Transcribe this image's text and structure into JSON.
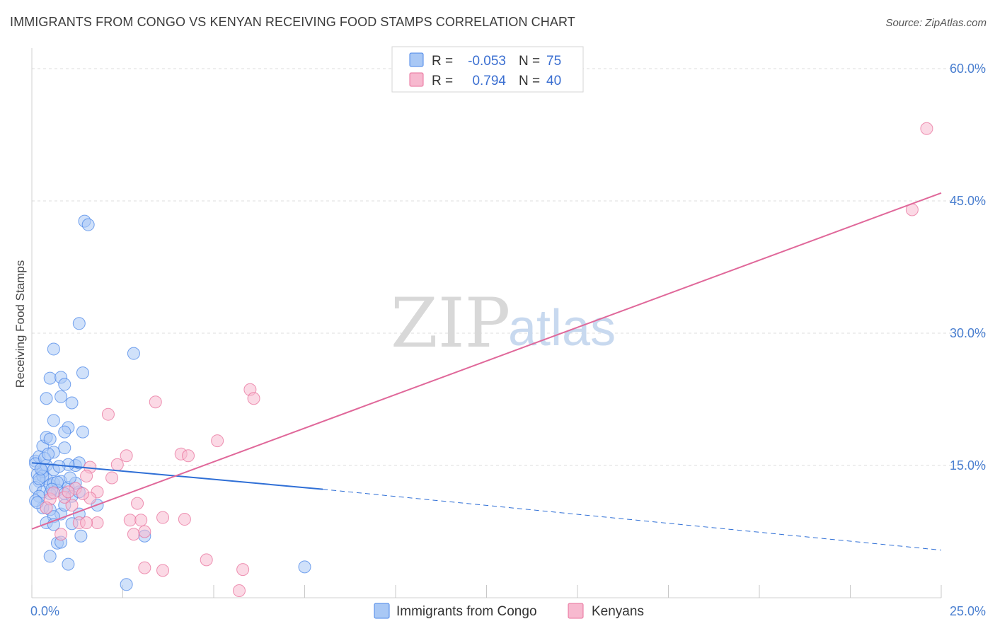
{
  "title": "IMMIGRANTS FROM CONGO VS KENYAN RECEIVING FOOD STAMPS CORRELATION CHART",
  "source": "Source: ZipAtlas.com",
  "colors": {
    "blue": "#4a86e8",
    "blue_fill": "#a9c8f5",
    "blue_line": "#2f6fd6",
    "pink": "#e8709b",
    "pink_fill": "#f7b9cf",
    "pink_line": "#e0689a",
    "grid": "#dedede",
    "tick_text": "#4a7fd0"
  },
  "watermark": {
    "zip": "ZIP",
    "atlas": "atlas"
  },
  "legend": {
    "rows": [
      {
        "r_label": "R =",
        "r_value": "-0.053",
        "n_label": "N =",
        "n_value": "75"
      },
      {
        "r_label": "R =",
        "r_value": "0.794",
        "n_label": "N =",
        "n_value": "40"
      }
    ]
  },
  "bottom_legend": [
    "Immigrants from Congo",
    "Kenyans"
  ],
  "chart_data": {
    "type": "scatter",
    "title": "IMMIGRANTS FROM CONGO VS KENYAN RECEIVING FOOD STAMPS CORRELATION CHART",
    "xlabel": "",
    "ylabel": "Receiving Food Stamps",
    "xlim": [
      0,
      25
    ],
    "ylim": [
      0,
      60
    ],
    "x_tick_labels": [
      "0.0%",
      "25.0%"
    ],
    "y_ticks": [
      15,
      30,
      45,
      60
    ],
    "y_tick_labels": [
      "15.0%",
      "30.0%",
      "45.0%",
      "60.0%"
    ],
    "grid": true,
    "series": [
      {
        "name": "Immigrants from Congo",
        "r": -0.053,
        "n": 75,
        "trend": {
          "x0": 0,
          "y0": 15.3,
          "x1": 8.0,
          "y1": 12.3,
          "dash_to_x": 25,
          "dash_to_y": 5.4
        },
        "points": [
          [
            0.1,
            15.5
          ],
          [
            0.15,
            14.0
          ],
          [
            0.2,
            13.2
          ],
          [
            0.1,
            12.5
          ],
          [
            0.3,
            12.0
          ],
          [
            0.2,
            11.5
          ],
          [
            0.4,
            13.5
          ],
          [
            0.5,
            12.8
          ],
          [
            0.6,
            13.0
          ],
          [
            0.3,
            14.3
          ],
          [
            0.2,
            16.0
          ],
          [
            0.1,
            15.2
          ],
          [
            0.4,
            15.0
          ],
          [
            0.6,
            14.5
          ],
          [
            0.8,
            13.2
          ],
          [
            1.0,
            12.5
          ],
          [
            0.7,
            12.2
          ],
          [
            0.9,
            11.8
          ],
          [
            1.1,
            11.5
          ],
          [
            1.3,
            12.0
          ],
          [
            0.3,
            10.2
          ],
          [
            0.5,
            10.0
          ],
          [
            0.8,
            9.5
          ],
          [
            0.6,
            9.2
          ],
          [
            0.4,
            8.5
          ],
          [
            0.6,
            8.3
          ],
          [
            1.3,
            9.5
          ],
          [
            1.8,
            10.5
          ],
          [
            0.3,
            17.2
          ],
          [
            0.4,
            18.2
          ],
          [
            0.5,
            18.0
          ],
          [
            0.6,
            16.5
          ],
          [
            0.9,
            17.0
          ],
          [
            1.0,
            19.3
          ],
          [
            0.9,
            18.8
          ],
          [
            1.4,
            18.8
          ],
          [
            0.6,
            20.1
          ],
          [
            0.4,
            22.6
          ],
          [
            0.8,
            22.8
          ],
          [
            1.1,
            22.1
          ],
          [
            0.5,
            24.9
          ],
          [
            0.8,
            25.0
          ],
          [
            0.9,
            24.2
          ],
          [
            1.4,
            25.5
          ],
          [
            0.6,
            28.2
          ],
          [
            2.8,
            27.7
          ],
          [
            1.3,
            31.1
          ],
          [
            1.45,
            42.7
          ],
          [
            1.55,
            42.3
          ],
          [
            0.5,
            4.7
          ],
          [
            0.7,
            6.2
          ],
          [
            0.8,
            6.3
          ],
          [
            1.0,
            3.8
          ],
          [
            1.35,
            7.0
          ],
          [
            3.1,
            7.0
          ],
          [
            2.6,
            1.5
          ],
          [
            7.5,
            3.5
          ],
          [
            1.2,
            15.0
          ],
          [
            1.3,
            15.3
          ],
          [
            1.0,
            15.1
          ],
          [
            0.3,
            13.8
          ],
          [
            0.7,
            13.1
          ],
          [
            1.2,
            13.0
          ],
          [
            0.2,
            13.5
          ],
          [
            0.5,
            11.8
          ],
          [
            0.9,
            10.5
          ],
          [
            1.1,
            8.4
          ],
          [
            0.1,
            11.0
          ],
          [
            0.35,
            15.8
          ],
          [
            0.75,
            14.9
          ],
          [
            1.05,
            13.6
          ],
          [
            0.15,
            10.8
          ],
          [
            0.55,
            12.3
          ],
          [
            0.25,
            14.6
          ],
          [
            0.45,
            16.3
          ]
        ]
      },
      {
        "name": "Kenyans",
        "r": 0.794,
        "n": 40,
        "trend": {
          "x0": 0,
          "y0": 7.8,
          "x1": 25,
          "y1": 45.9
        },
        "points": [
          [
            24.6,
            53.2
          ],
          [
            24.2,
            44.0
          ],
          [
            6.0,
            23.6
          ],
          [
            6.1,
            22.6
          ],
          [
            3.4,
            22.2
          ],
          [
            2.1,
            20.8
          ],
          [
            5.1,
            17.8
          ],
          [
            4.1,
            16.3
          ],
          [
            4.3,
            16.1
          ],
          [
            2.6,
            16.1
          ],
          [
            2.35,
            15.1
          ],
          [
            1.6,
            14.8
          ],
          [
            2.2,
            13.6
          ],
          [
            1.8,
            12.0
          ],
          [
            1.6,
            11.3
          ],
          [
            2.9,
            10.7
          ],
          [
            1.1,
            10.5
          ],
          [
            0.9,
            11.4
          ],
          [
            0.5,
            11.2
          ],
          [
            1.5,
            13.8
          ],
          [
            1.3,
            8.5
          ],
          [
            1.8,
            8.5
          ],
          [
            1.5,
            8.5
          ],
          [
            2.7,
            8.8
          ],
          [
            3.0,
            8.8
          ],
          [
            3.6,
            9.1
          ],
          [
            4.2,
            8.9
          ],
          [
            2.8,
            7.2
          ],
          [
            3.1,
            7.5
          ],
          [
            0.8,
            7.2
          ],
          [
            3.1,
            3.4
          ],
          [
            3.6,
            3.1
          ],
          [
            4.8,
            4.3
          ],
          [
            5.8,
            3.2
          ],
          [
            5.7,
            0.8
          ],
          [
            1.2,
            12.4
          ],
          [
            1.0,
            12.0
          ],
          [
            0.4,
            10.2
          ],
          [
            0.6,
            11.9
          ],
          [
            1.4,
            11.8
          ]
        ]
      }
    ]
  }
}
